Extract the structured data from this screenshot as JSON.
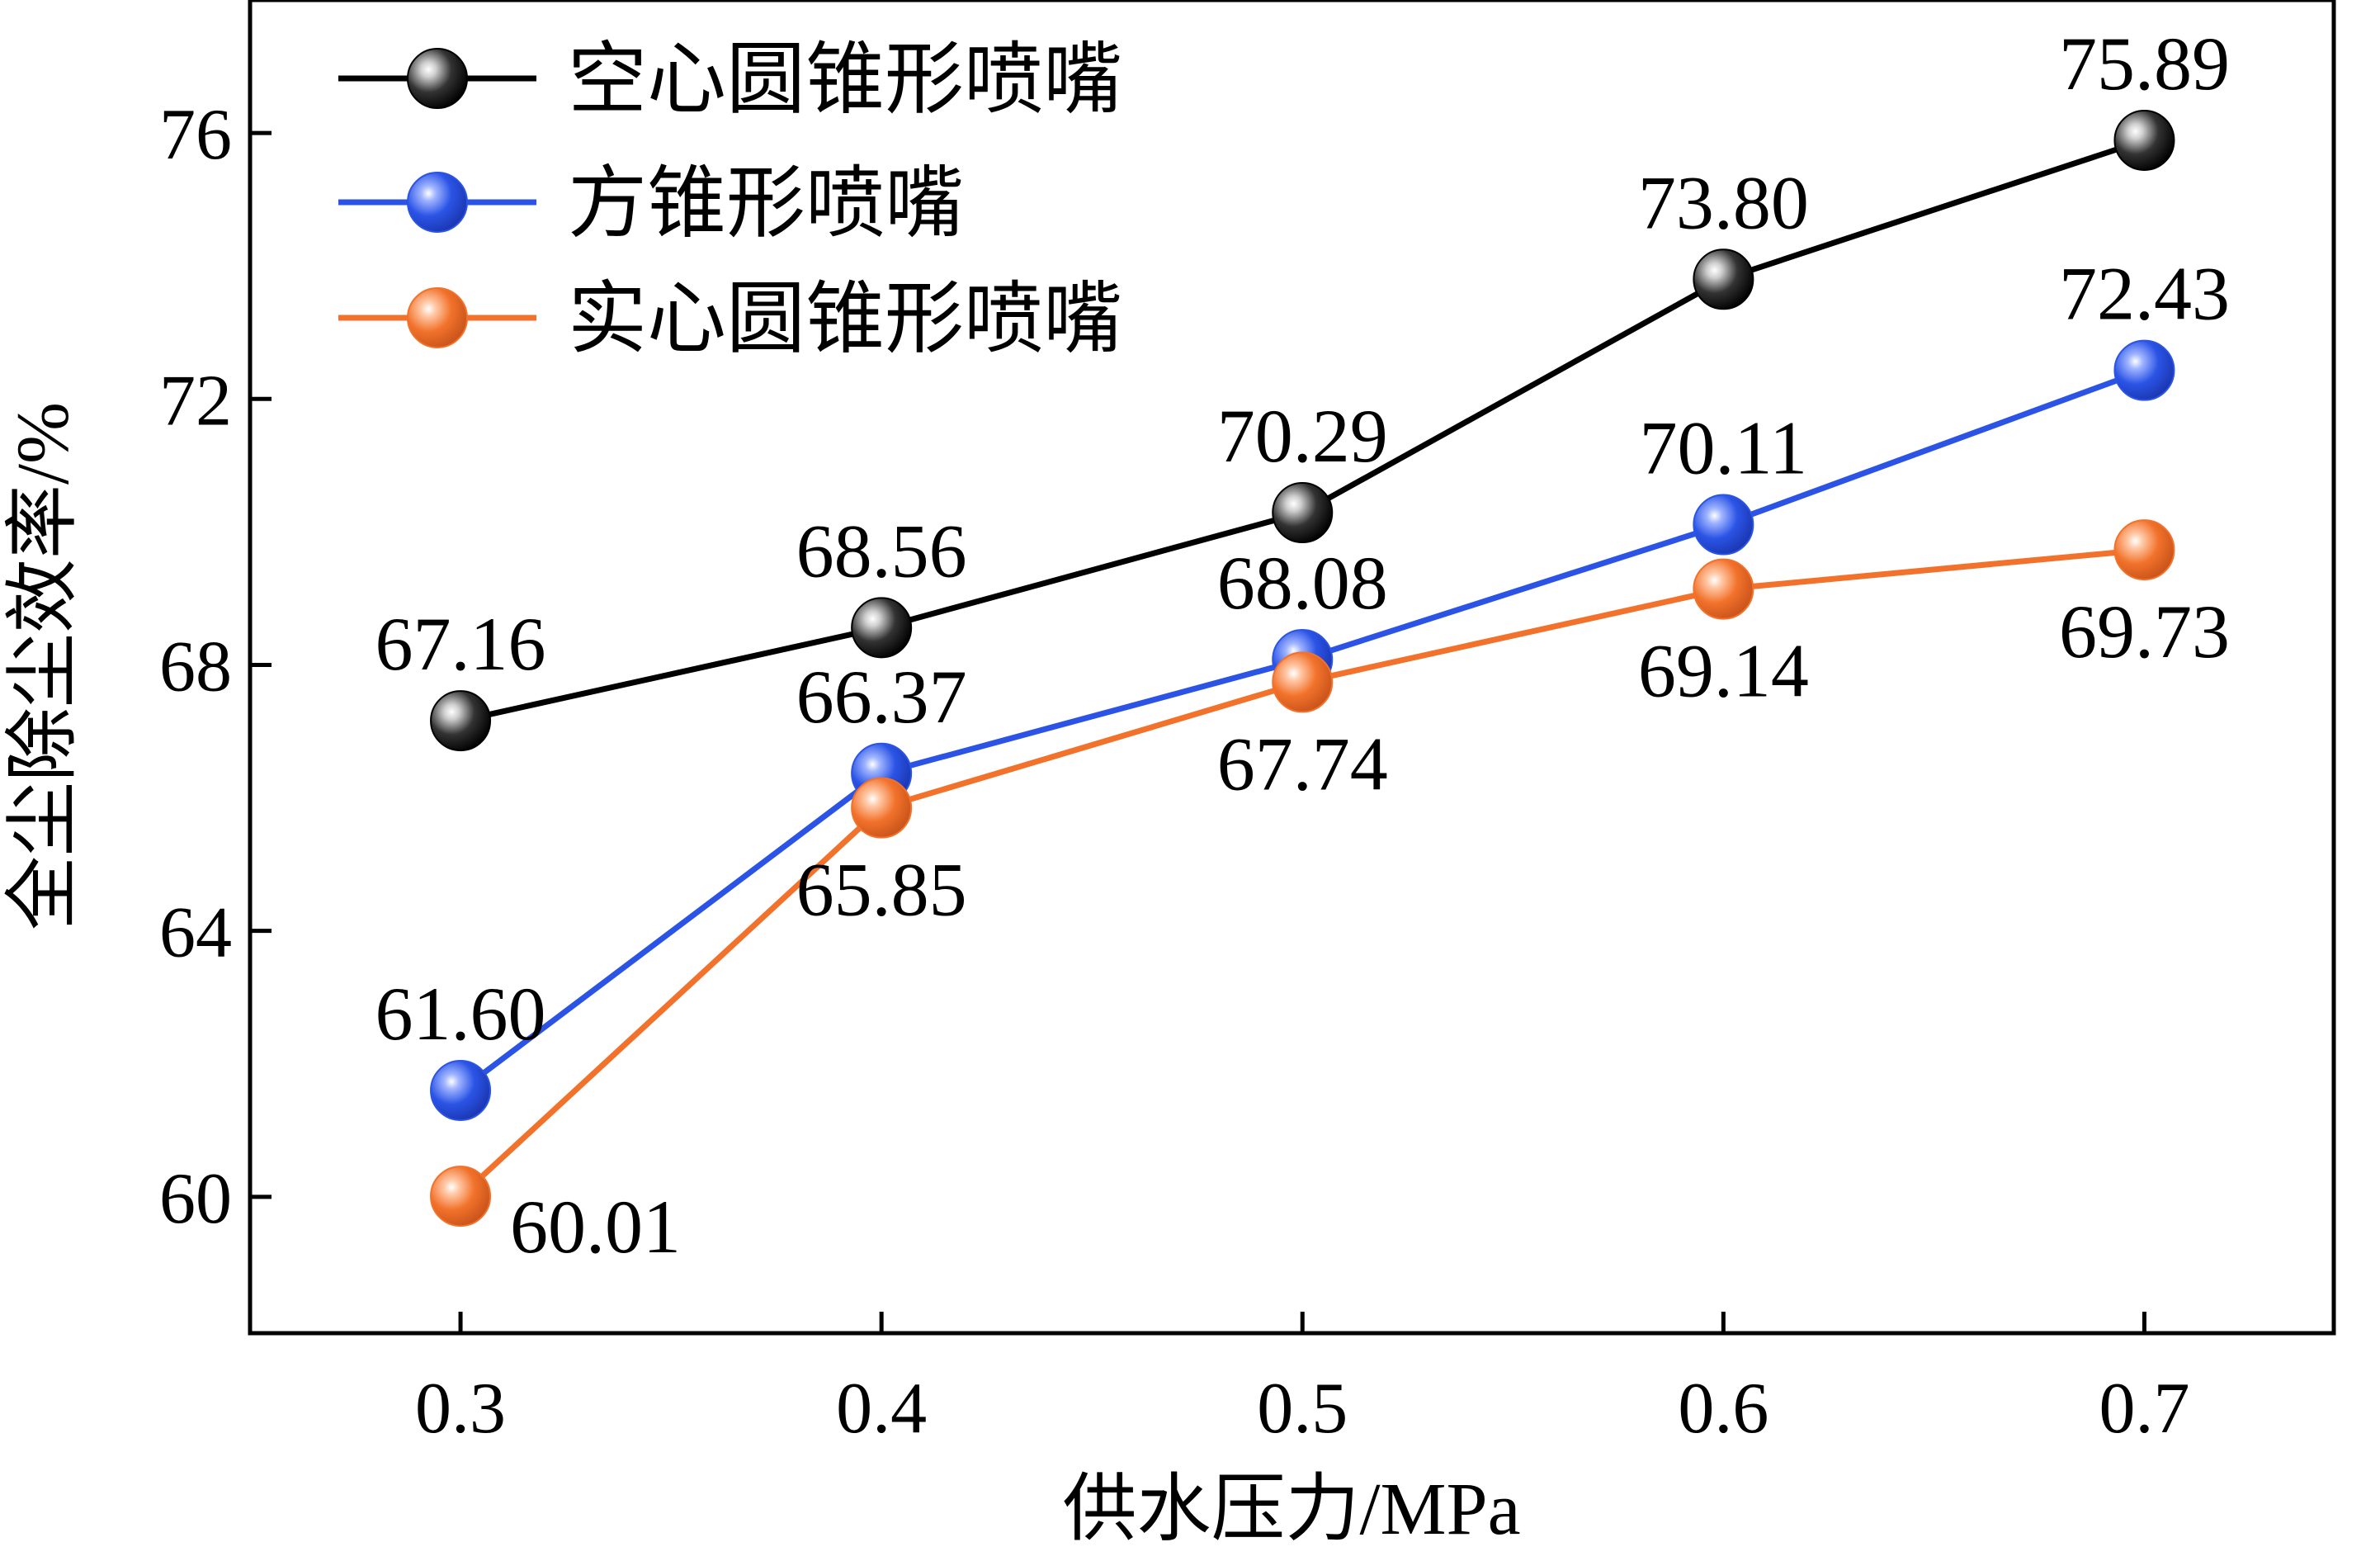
{
  "chart_data": {
    "type": "line",
    "xlabel": "供水压力/MPa",
    "ylabel": "全尘除尘效率/%",
    "x": [
      0.3,
      0.4,
      0.5,
      0.6,
      0.7
    ],
    "x_tick_labels": [
      "0.3",
      "0.4",
      "0.5",
      "0.6",
      "0.7"
    ],
    "y_ticks": [
      60,
      64,
      68,
      72,
      76
    ],
    "y_tick_labels": [
      "60",
      "64",
      "68",
      "72",
      "76"
    ],
    "xlim": [
      0.25,
      0.745
    ],
    "ylim": [
      57.95,
      78.0
    ],
    "grid": false,
    "legend_position": "top-left",
    "series": [
      {
        "name": "空心圆锥形喷嘴",
        "color": "#000000",
        "values": [
          67.16,
          68.56,
          70.29,
          73.8,
          75.89
        ],
        "labels": [
          "67.16",
          "68.56",
          "70.29",
          "73.80",
          "75.89"
        ],
        "label_side": [
          "above",
          "above",
          "above",
          "above",
          "above"
        ]
      },
      {
        "name": "方锥形喷嘴",
        "color": "#2b54e6",
        "values": [
          61.6,
          66.37,
          68.08,
          70.11,
          72.43
        ],
        "labels": [
          "61.60",
          "66.37",
          "68.08",
          "70.11",
          "72.43"
        ],
        "label_side": [
          "above",
          "above",
          "above",
          "above",
          "above"
        ]
      },
      {
        "name": "实心圆锥形喷嘴",
        "color": "#f2722b",
        "values": [
          60.01,
          65.85,
          67.74,
          69.14,
          69.73
        ],
        "labels": [
          "60.01",
          "65.85",
          "67.74",
          "69.14",
          "69.73"
        ],
        "label_side": [
          "right",
          "below",
          "below",
          "below",
          "below"
        ]
      }
    ]
  }
}
